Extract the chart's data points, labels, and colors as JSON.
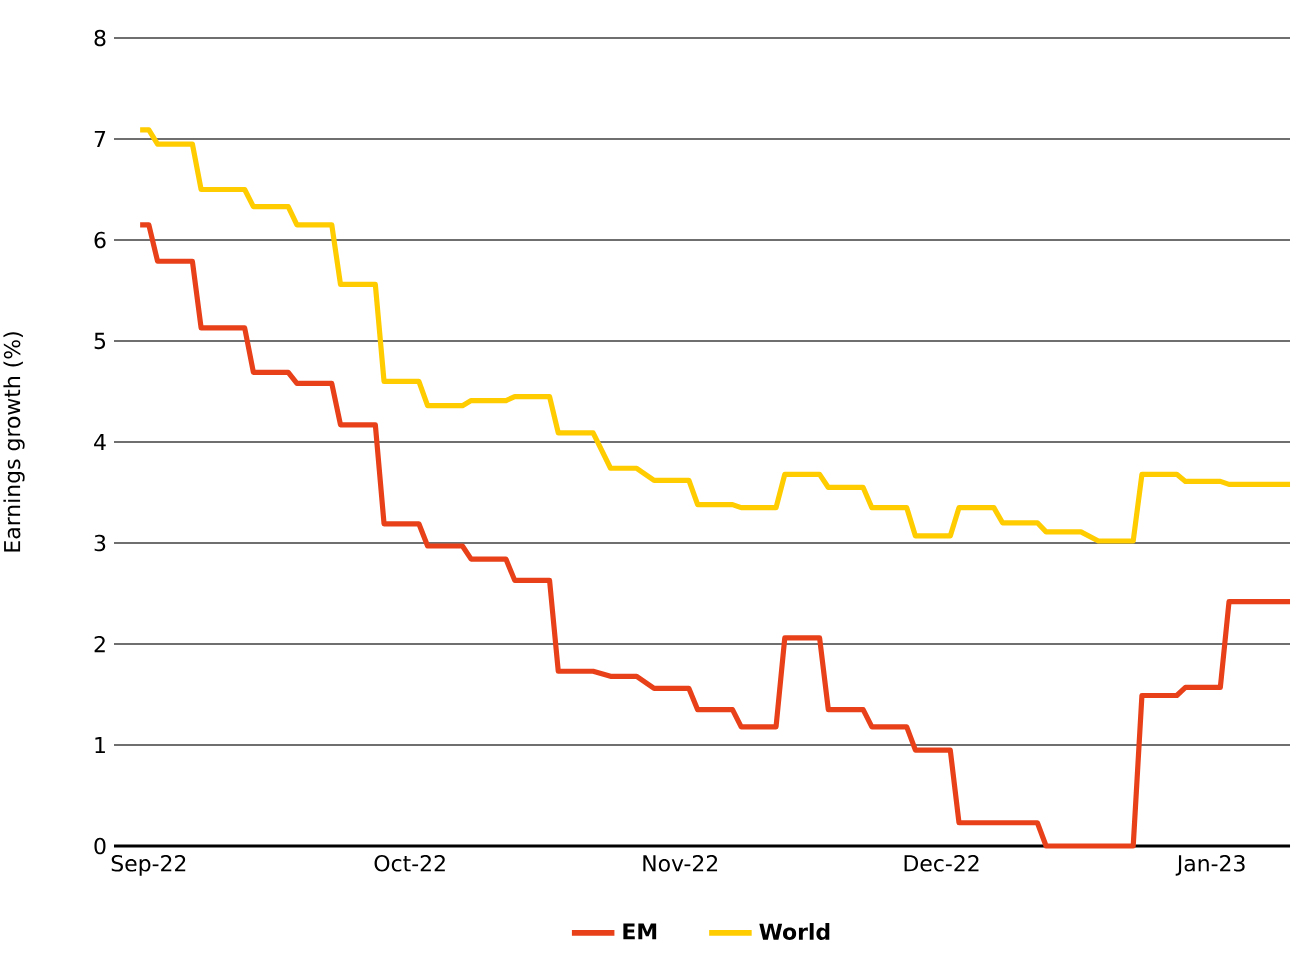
{
  "chart_data": {
    "type": "line",
    "ylabel": "Earnings growth (%)",
    "ylim": [
      0,
      8
    ],
    "yticks": [
      0,
      1,
      2,
      3,
      4,
      5,
      6,
      7,
      8
    ],
    "xlim": [
      "2022-08-28",
      "2023-01-10"
    ],
    "xticks": [
      {
        "value": "2022-09-01",
        "label": "Sep-22"
      },
      {
        "value": "2022-10-01",
        "label": "Oct-22"
      },
      {
        "value": "2022-11-01",
        "label": "Nov-22"
      },
      {
        "value": "2022-12-01",
        "label": "Dec-22"
      },
      {
        "value": "2023-01-01",
        "label": "Jan-23"
      }
    ],
    "grid": "y",
    "legend": "bottom",
    "marker": "none",
    "line_style": "solid",
    "series": [
      {
        "name": "EM",
        "color": "#e8411a",
        "x": [
          "2022-08-31",
          "2022-09-01",
          "2022-09-02",
          "2022-09-06",
          "2022-09-07",
          "2022-09-12",
          "2022-09-13",
          "2022-09-17",
          "2022-09-18",
          "2022-09-22",
          "2022-09-23",
          "2022-09-27",
          "2022-09-28",
          "2022-10-02",
          "2022-10-03",
          "2022-10-07",
          "2022-10-08",
          "2022-10-12",
          "2022-10-13",
          "2022-10-17",
          "2022-10-18",
          "2022-10-22",
          "2022-10-24",
          "2022-10-27",
          "2022-10-29",
          "2022-11-02",
          "2022-11-03",
          "2022-11-07",
          "2022-11-08",
          "2022-11-12",
          "2022-11-13",
          "2022-11-17",
          "2022-11-18",
          "2022-11-22",
          "2022-11-23",
          "2022-11-27",
          "2022-11-28",
          "2022-12-02",
          "2022-12-03",
          "2022-12-12",
          "2022-12-13",
          "2022-12-23",
          "2022-12-24",
          "2022-12-28",
          "2022-12-29",
          "2023-01-02",
          "2023-01-03",
          "2023-01-10"
        ],
        "values": [
          6.15,
          6.15,
          5.79,
          5.79,
          5.13,
          5.13,
          4.69,
          4.69,
          4.58,
          4.58,
          4.17,
          4.17,
          3.19,
          3.19,
          2.97,
          2.97,
          2.84,
          2.84,
          2.63,
          2.63,
          1.73,
          1.73,
          1.68,
          1.68,
          1.56,
          1.56,
          1.35,
          1.35,
          1.18,
          1.18,
          2.06,
          2.06,
          1.35,
          1.35,
          1.18,
          1.18,
          0.95,
          0.95,
          0.23,
          0.23,
          0.0,
          0.0,
          1.49,
          1.49,
          1.57,
          1.57,
          2.42,
          2.42
        ]
      },
      {
        "name": "World",
        "color": "#ffcc00",
        "x": [
          "2022-08-31",
          "2022-09-01",
          "2022-09-02",
          "2022-09-06",
          "2022-09-07",
          "2022-09-12",
          "2022-09-13",
          "2022-09-17",
          "2022-09-18",
          "2022-09-22",
          "2022-09-23",
          "2022-09-27",
          "2022-09-28",
          "2022-10-02",
          "2022-10-03",
          "2022-10-07",
          "2022-10-08",
          "2022-10-12",
          "2022-10-13",
          "2022-10-17",
          "2022-10-18",
          "2022-10-22",
          "2022-10-24",
          "2022-10-27",
          "2022-10-29",
          "2022-11-02",
          "2022-11-03",
          "2022-11-07",
          "2022-11-08",
          "2022-11-12",
          "2022-11-13",
          "2022-11-17",
          "2022-11-18",
          "2022-11-22",
          "2022-11-23",
          "2022-11-27",
          "2022-11-28",
          "2022-12-02",
          "2022-12-03",
          "2022-12-07",
          "2022-12-08",
          "2022-12-12",
          "2022-12-13",
          "2022-12-17",
          "2022-12-19",
          "2022-12-23",
          "2022-12-24",
          "2022-12-28",
          "2022-12-29",
          "2023-01-02",
          "2023-01-03",
          "2023-01-10"
        ],
        "values": [
          7.09,
          7.09,
          6.95,
          6.95,
          6.5,
          6.5,
          6.33,
          6.33,
          6.15,
          6.15,
          5.56,
          5.56,
          4.6,
          4.6,
          4.36,
          4.36,
          4.41,
          4.41,
          4.45,
          4.45,
          4.09,
          4.09,
          3.74,
          3.74,
          3.62,
          3.62,
          3.38,
          3.38,
          3.35,
          3.35,
          3.68,
          3.68,
          3.55,
          3.55,
          3.35,
          3.35,
          3.07,
          3.07,
          3.35,
          3.35,
          3.2,
          3.2,
          3.11,
          3.11,
          3.02,
          3.02,
          3.68,
          3.68,
          3.61,
          3.61,
          3.58,
          3.58
        ]
      }
    ]
  }
}
